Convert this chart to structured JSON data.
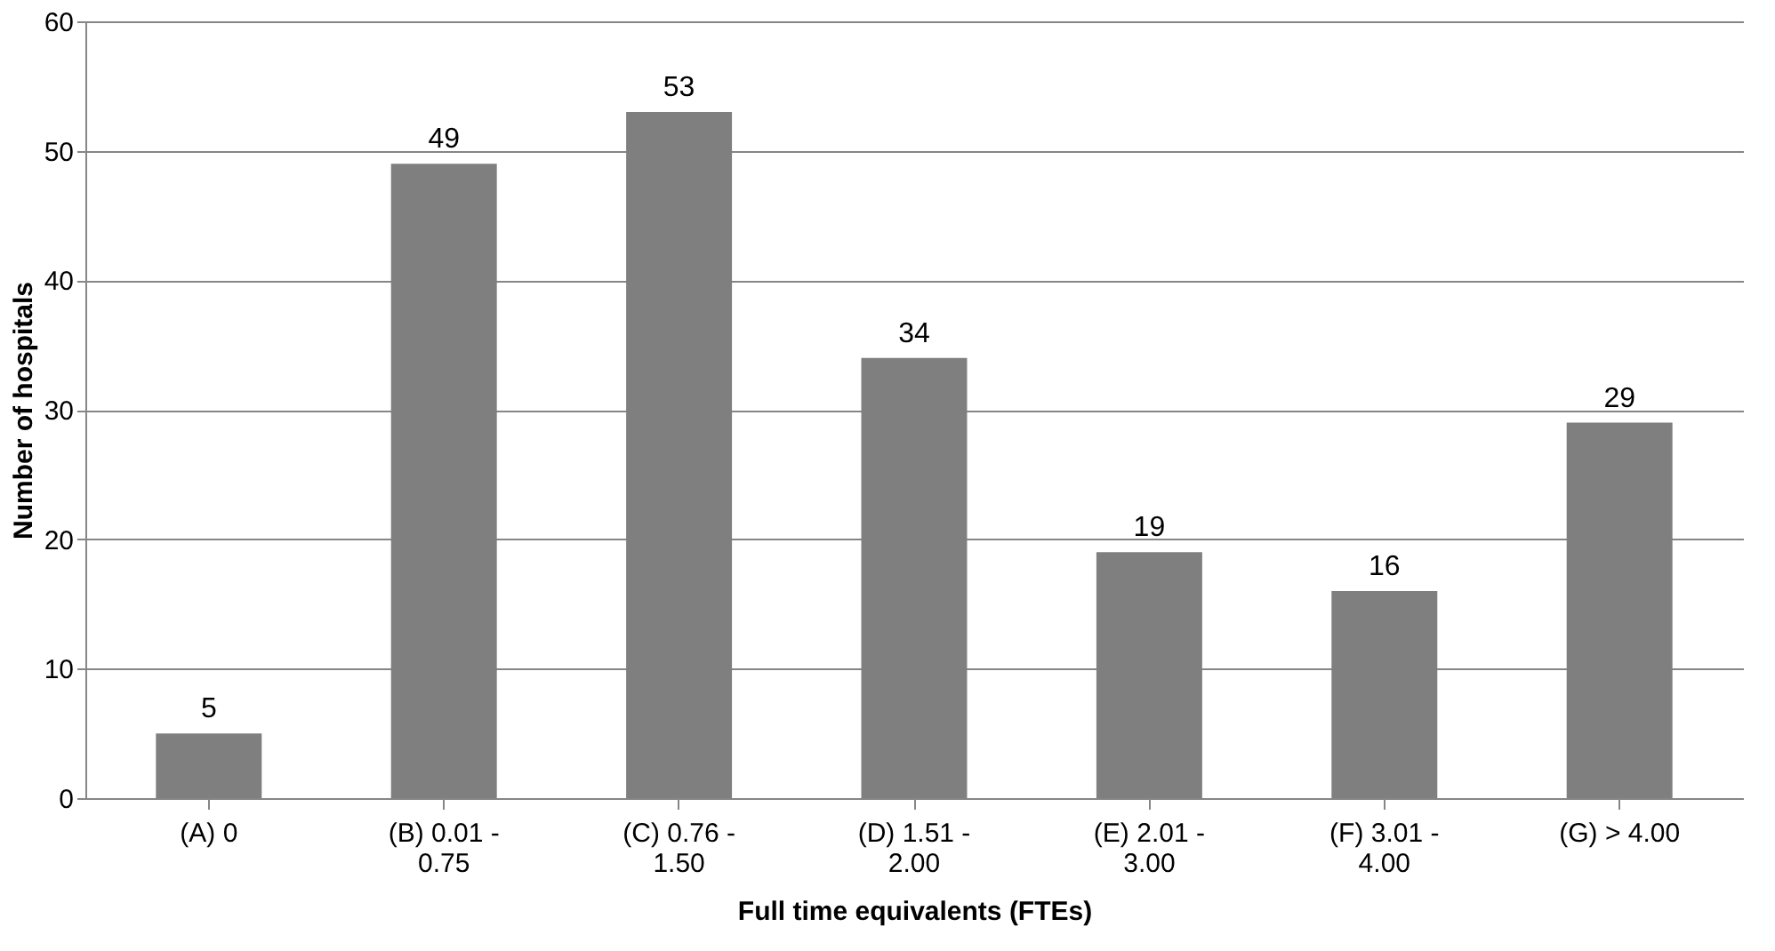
{
  "chart_data": {
    "type": "bar",
    "xlabel": "Full time equivalents (FTEs)",
    "ylabel": "Number  of hospitals",
    "categories": [
      "(A) 0",
      "(B) 0.01 - 0.75",
      "(C) 0.76 - 1.50",
      "(D) 1.51 - 2.00",
      "(E) 2.01 - 3.00",
      "(F) 3.01 - 4.00",
      "(G) > 4.00"
    ],
    "values": [
      5,
      49,
      53,
      34,
      19,
      16,
      29
    ],
    "color": "#7f7f7f",
    "ylim": [
      0,
      60
    ],
    "yticks": [
      0,
      10,
      20,
      30,
      40,
      50,
      60
    ],
    "grid": "y",
    "data_labels": true
  }
}
